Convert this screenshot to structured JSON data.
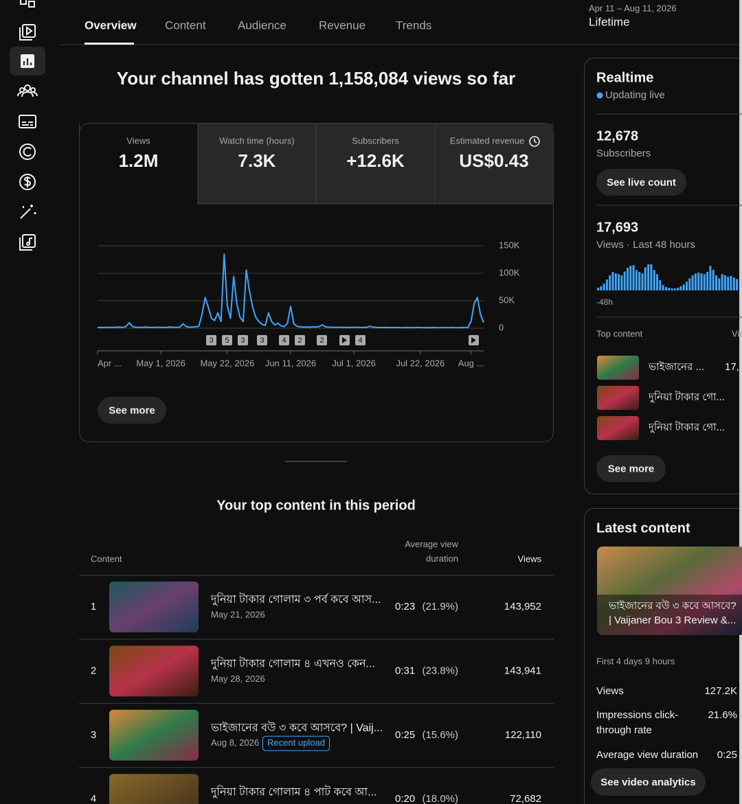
{
  "tabs": [
    "Overview",
    "Content",
    "Audience",
    "Revenue",
    "Trends"
  ],
  "date_range": {
    "range": "Apr 11 – Aug 11, 2026",
    "period": "Lifetime"
  },
  "headline": "Your channel has gotten 1,158,084 views so far",
  "metrics": [
    {
      "label": "Views",
      "value": "1.2M"
    },
    {
      "label": "Watch time (hours)",
      "value": "7.3K"
    },
    {
      "label": "Subscribers",
      "value": "+12.6K"
    },
    {
      "label": "Estimated revenue",
      "value": "US$0.43"
    }
  ],
  "chart_data": [
    {
      "type": "line",
      "color": "#3ea6ff",
      "ylim": [
        0,
        150000
      ],
      "yticks": [
        0,
        {
          "value": 50000,
          "label": "50K"
        },
        {
          "value": 100000,
          "label": "100K"
        },
        {
          "value": 150000,
          "label": "150K"
        }
      ],
      "categories": [
        "Apr ...",
        null,
        null,
        null,
        null,
        null,
        null,
        null,
        null,
        null,
        null,
        null,
        null,
        null,
        null,
        null,
        null,
        null,
        null,
        null,
        "May 1, 2026",
        null,
        null,
        null,
        null,
        null,
        null,
        null,
        null,
        null,
        null,
        null,
        null,
        null,
        null,
        null,
        null,
        null,
        null,
        null,
        null,
        "May 22, 2026",
        null,
        null,
        null,
        null,
        null,
        null,
        null,
        null,
        null,
        null,
        null,
        null,
        null,
        null,
        null,
        null,
        null,
        null,
        null,
        "Jun 11, 2026",
        null,
        null,
        null,
        null,
        null,
        null,
        null,
        null,
        null,
        null,
        null,
        null,
        null,
        null,
        null,
        null,
        null,
        null,
        null,
        "Jul 1, 2026",
        null,
        null,
        null,
        null,
        null,
        null,
        null,
        null,
        null,
        null,
        null,
        null,
        null,
        null,
        null,
        null,
        null,
        null,
        null,
        null,
        "Jul 22, 2026",
        null,
        null,
        null,
        null,
        null,
        null,
        null,
        null,
        null,
        null,
        null,
        null,
        null,
        null,
        null,
        "Aug ...",
        null,
        null,
        null,
        null
      ],
      "values": [
        1200,
        1500,
        1300,
        1800,
        1600,
        1400,
        2000,
        1700,
        1500,
        3000,
        10000,
        3000,
        1800,
        1600,
        1500,
        2000,
        1700,
        1400,
        1600,
        1900,
        1500,
        1300,
        1600,
        2200,
        1800,
        1500,
        2000,
        8000,
        3000,
        1800,
        2000,
        2500,
        3500,
        25000,
        56000,
        38000,
        18000,
        14000,
        28000,
        12000,
        135000,
        40000,
        18000,
        94000,
        45000,
        20000,
        12000,
        106000,
        68000,
        38000,
        20000,
        12000,
        7000,
        5000,
        28000,
        12000,
        6000,
        9000,
        4000,
        3000,
        9000,
        40000,
        8000,
        3500,
        2500,
        2000,
        2200,
        1800,
        2500,
        2000,
        3000,
        6000,
        2500,
        2000,
        1800,
        1600,
        1500,
        1700,
        1400,
        1500,
        1300,
        1600,
        1800,
        1500,
        1400,
        1600,
        3500,
        2000,
        1500,
        1300,
        1200,
        1400,
        1200,
        1100,
        1300,
        1200,
        1000,
        1100,
        1200,
        1000,
        1100,
        1300,
        1200,
        1000,
        1100,
        1000,
        1200,
        1100,
        1000,
        1200,
        1100,
        1000,
        1300,
        1100,
        1000,
        1200,
        1100,
        1300,
        12000,
        45000,
        56000,
        25000,
        10000
      ],
      "markers": [
        "3",
        "5",
        "3",
        "3",
        "4",
        "2",
        "2",
        null,
        "4",
        null
      ]
    },
    {
      "type": "bar",
      "color": "#3ea6ff",
      "x_label": "-48h",
      "values": [
        70,
        110,
        180,
        290,
        400,
        490,
        450,
        430,
        400,
        500,
        600,
        650,
        670,
        540,
        490,
        450,
        610,
        690,
        690,
        540,
        430,
        270,
        140,
        90,
        70,
        55,
        55,
        70,
        110,
        160,
        230,
        320,
        400,
        450,
        470,
        450,
        430,
        490,
        650,
        540,
        400,
        320,
        430,
        400,
        360,
        380,
        340,
        300
      ]
    }
  ],
  "see_more": "See more",
  "top_content": {
    "title": "Your top content in this period",
    "columns": [
      "Content",
      "Average view duration",
      "Views"
    ],
    "rows": [
      {
        "rank": 1,
        "title": "দুনিয়া টাকার গোলাম ৩ পর্ব কবে আস...",
        "date": "May 21, 2026",
        "duration": "0:23",
        "percent": "(21.9%)",
        "views": "143,952"
      },
      {
        "rank": 2,
        "title": "দুনিয়া টাকার গোলাম ৪ এখনও কেন...",
        "date": "May 28, 2026",
        "duration": "0:31",
        "percent": "(23.8%)",
        "views": "143,941"
      },
      {
        "rank": 3,
        "title": "ভাইজানের বউ ৩ কবে আসবে? | Vaij...",
        "date": "Aug 8, 2026",
        "badge": "Recent upload",
        "duration": "0:25",
        "percent": "(15.6%)",
        "views": "122,110"
      },
      {
        "rank": 4,
        "title": "দুনিয়া টাকার গোলাম ৪ পাট কবে আ...",
        "date": "",
        "duration": "0:20",
        "percent": "(18.0%)",
        "views": "72,682"
      }
    ]
  },
  "realtime": {
    "title": "Realtime",
    "status": "Updating live",
    "subscribers": "12,678",
    "subscribers_label": "Subscribers",
    "live_button": "See live count",
    "views": "17,693",
    "views_label": "Views · Last 48 hours",
    "top_label": "Top content",
    "top_views_label": "Views",
    "items": [
      {
        "title": "ভাইজানের ...",
        "views": "17,"
      },
      {
        "title": "দুনিয়া টাকার গো..."
      },
      {
        "title": "দুনিয়া টাকার গো..."
      }
    ],
    "see_more": "See more"
  },
  "latest": {
    "title": "Latest content",
    "video_title_1": "ভাইজানের বউ ৩ কবে আসবে?",
    "video_title_2": "| Vaijaner Bou 3 Review &...",
    "period": "First 4 days 9 hours",
    "stats": [
      {
        "label": "Views",
        "value": "127.2K"
      },
      {
        "label": "Impressions click-",
        "label_2": "through rate",
        "value": "21.6%"
      },
      {
        "label": "Average view duration",
        "value": "0:25"
      }
    ],
    "button": "See video analytics"
  }
}
